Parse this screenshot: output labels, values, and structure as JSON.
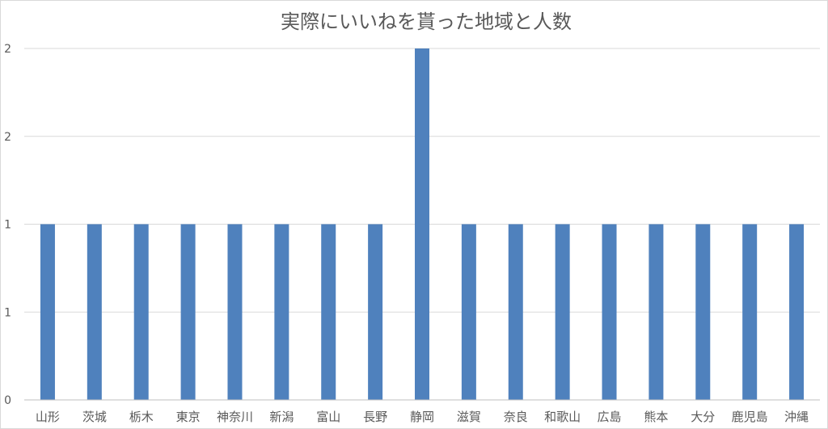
{
  "chart_data": {
    "type": "bar",
    "title": "実際にいいねを貰った地域と人数",
    "xlabel": "",
    "ylabel": "",
    "categories": [
      "山形",
      "茨城",
      "栃木",
      "東京",
      "神奈川",
      "新潟",
      "富山",
      "長野",
      "静岡",
      "滋賀",
      "奈良",
      "和歌山",
      "広島",
      "熊本",
      "大分",
      "鹿児島",
      "沖縄"
    ],
    "series": [
      {
        "values": [
          1,
          1,
          1,
          1,
          1,
          1,
          1,
          1,
          2,
          1,
          1,
          1,
          1,
          1,
          1,
          1,
          1
        ]
      }
    ],
    "ylim": [
      0,
      2
    ],
    "y_ticks": [
      0,
      0.5,
      1,
      1.5,
      2
    ],
    "y_tick_labels": [
      "0",
      "1",
      "1",
      "2",
      "2"
    ],
    "grid": true,
    "legend": "none",
    "colors": {
      "bar": "#4f81bd",
      "grid": "#d9d9d9",
      "axis": "#bfbfbf",
      "text": "#595959"
    }
  }
}
